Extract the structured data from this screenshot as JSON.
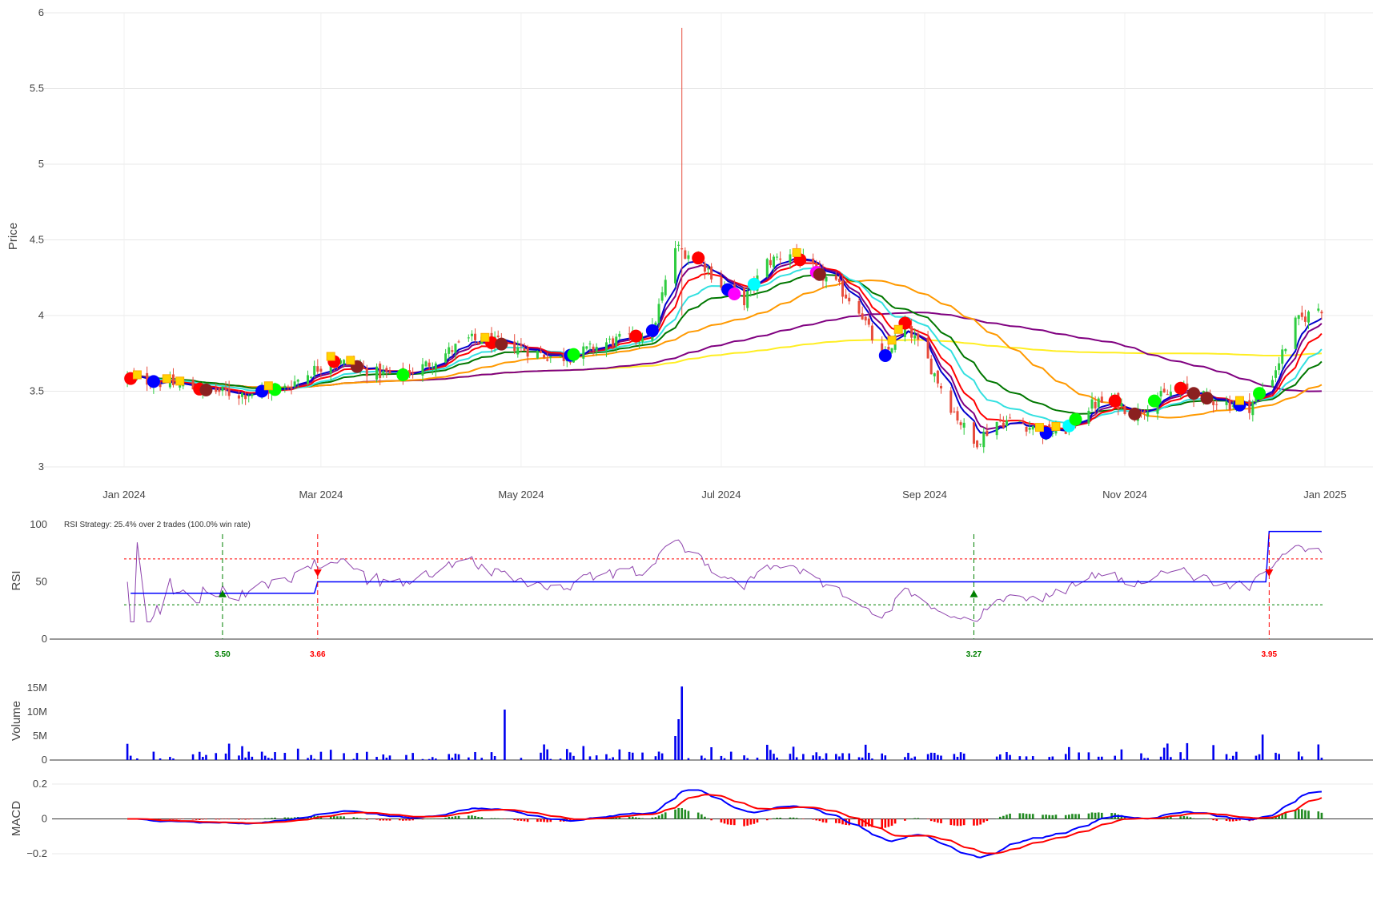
{
  "chart_data": [
    {
      "type": "candlestick",
      "panel": "price",
      "ylabel": "Price",
      "ylim": [
        2.95,
        6.05
      ],
      "y_ticks": [
        "3",
        "3.5",
        "4",
        "4.5",
        "5",
        "5.5",
        "6"
      ],
      "x_ticks": [
        "Jan 2024",
        "Mar 2024",
        "May 2024",
        "Jul 2024",
        "Sep 2024",
        "Nov 2024",
        "Jan 2025"
      ],
      "grid": true,
      "legend": "none",
      "colors": {
        "up": "#2ecc40",
        "down": "#e74c3c"
      },
      "close_series": [
        [
          "2024-01-01",
          3.59
        ],
        [
          "2024-01-08",
          3.57
        ],
        [
          "2024-01-15",
          3.55
        ],
        [
          "2024-01-22",
          3.52
        ],
        [
          "2024-01-29",
          3.5
        ],
        [
          "2024-02-05",
          3.48
        ],
        [
          "2024-02-12",
          3.5
        ],
        [
          "2024-02-19",
          3.52
        ],
        [
          "2024-02-26",
          3.62
        ],
        [
          "2024-03-04",
          3.7
        ],
        [
          "2024-03-11",
          3.67
        ],
        [
          "2024-03-18",
          3.62
        ],
        [
          "2024-03-25",
          3.6
        ],
        [
          "2024-04-01",
          3.66
        ],
        [
          "2024-04-08",
          3.75
        ],
        [
          "2024-04-15",
          3.84
        ],
        [
          "2024-04-22",
          3.82
        ],
        [
          "2024-04-29",
          3.8
        ],
        [
          "2024-05-06",
          3.75
        ],
        [
          "2024-05-13",
          3.72
        ],
        [
          "2024-05-20",
          3.76
        ],
        [
          "2024-05-27",
          3.82
        ],
        [
          "2024-06-03",
          3.85
        ],
        [
          "2024-06-10",
          3.9
        ],
        [
          "2024-06-17",
          4.45
        ],
        [
          "2024-06-24",
          4.38
        ],
        [
          "2024-07-01",
          4.2
        ],
        [
          "2024-07-08",
          4.1
        ],
        [
          "2024-07-15",
          4.35
        ],
        [
          "2024-07-22",
          4.42
        ],
        [
          "2024-07-29",
          4.3
        ],
        [
          "2024-08-05",
          4.2
        ],
        [
          "2024-08-12",
          4.05
        ],
        [
          "2024-08-19",
          3.7
        ],
        [
          "2024-08-26",
          3.95
        ],
        [
          "2024-09-02",
          3.7
        ],
        [
          "2024-09-09",
          3.4
        ],
        [
          "2024-09-16",
          3.15
        ],
        [
          "2024-09-23",
          3.3
        ],
        [
          "2024-09-30",
          3.3
        ],
        [
          "2024-10-07",
          3.22
        ],
        [
          "2024-10-14",
          3.25
        ],
        [
          "2024-10-21",
          3.4
        ],
        [
          "2024-10-28",
          3.45
        ],
        [
          "2024-11-04",
          3.35
        ],
        [
          "2024-11-11",
          3.45
        ],
        [
          "2024-11-18",
          3.52
        ],
        [
          "2024-11-25",
          3.46
        ],
        [
          "2024-12-02",
          3.42
        ],
        [
          "2024-12-09",
          3.4
        ],
        [
          "2024-12-16",
          3.6
        ],
        [
          "2024-12-23",
          3.95
        ],
        [
          "2024-12-30",
          4.05
        ]
      ],
      "spike": {
        "date": "2024-06-19",
        "high": 5.9,
        "low": 4.0
      }
    },
    {
      "type": "line",
      "panel": "rsi",
      "ylabel": "RSI",
      "ylim": [
        0,
        100
      ],
      "y_ticks": [
        "0",
        "50",
        "100"
      ],
      "title": "RSI Strategy: 25.4% over 2 trades (100.0% win rate)",
      "thresholds": {
        "overbought": 70,
        "oversold": 30
      },
      "trades": [
        {
          "date": "2024-01-31",
          "side": "buy",
          "label": "3.50"
        },
        {
          "date": "2024-02-29",
          "side": "sell",
          "label": "3.66"
        },
        {
          "date": "2024-09-16",
          "side": "buy",
          "label": "3.27"
        },
        {
          "date": "2024-12-15",
          "side": "sell",
          "label": "3.95"
        }
      ],
      "equity_line": [
        [
          "2024-01-03",
          40
        ],
        [
          "2024-02-28",
          40
        ],
        [
          "2024-02-29",
          50
        ],
        [
          "2024-12-14",
          50
        ],
        [
          "2024-12-15",
          94
        ],
        [
          "2024-12-31",
          94
        ]
      ]
    },
    {
      "type": "bar",
      "panel": "volume",
      "ylabel": "Volume",
      "y_ticks": [
        "0",
        "5M",
        "10M",
        "15M"
      ],
      "ylim": [
        0,
        15500000
      ],
      "spikes": [
        [
          "2024-04-26",
          10500000
        ],
        [
          "2024-06-19",
          15300000
        ],
        [
          "2024-06-18",
          8500000
        ],
        [
          "2024-06-17",
          5000000
        ],
        [
          "2024-12-13",
          5300000
        ]
      ]
    },
    {
      "type": "line+bar",
      "panel": "macd",
      "ylabel": "MACD",
      "ylim": [
        -0.22,
        0.22
      ],
      "y_ticks": [
        "−0.2",
        "0",
        "0.2"
      ],
      "series": [
        {
          "name": "",
          "role": "macd",
          "color": "#0000ff"
        },
        {
          "name": "",
          "role": "signal",
          "color": "#ff0000"
        }
      ]
    }
  ]
}
